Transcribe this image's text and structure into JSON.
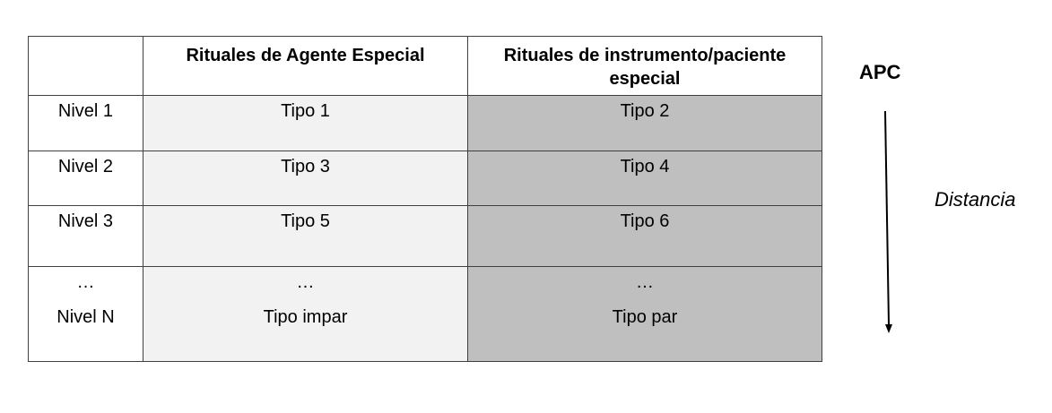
{
  "table": {
    "headers": [
      "",
      "Rituales de Agente Especial",
      "Rituales de instrumento/paciente especial"
    ],
    "rows": [
      {
        "level": "Nivel 1",
        "agent": "Tipo 1",
        "instrument": "Tipo 2"
      },
      {
        "level": "Nivel 2",
        "agent": "Tipo 3",
        "instrument": "Tipo 4"
      },
      {
        "level": "Nivel 3",
        "agent": "Tipo 5",
        "instrument": "Tipo 6"
      }
    ],
    "last_row": {
      "ellipsis": "…",
      "level": "Nivel N",
      "agent": "Tipo impar",
      "instrument": "Tipo par"
    }
  },
  "side": {
    "top_label": "APC",
    "axis_label": "Distancia",
    "arrow_icon": "arrow-down-icon"
  },
  "colors": {
    "agent_column": "#f2f2f2",
    "instrument_column": "#bfbfbf"
  }
}
